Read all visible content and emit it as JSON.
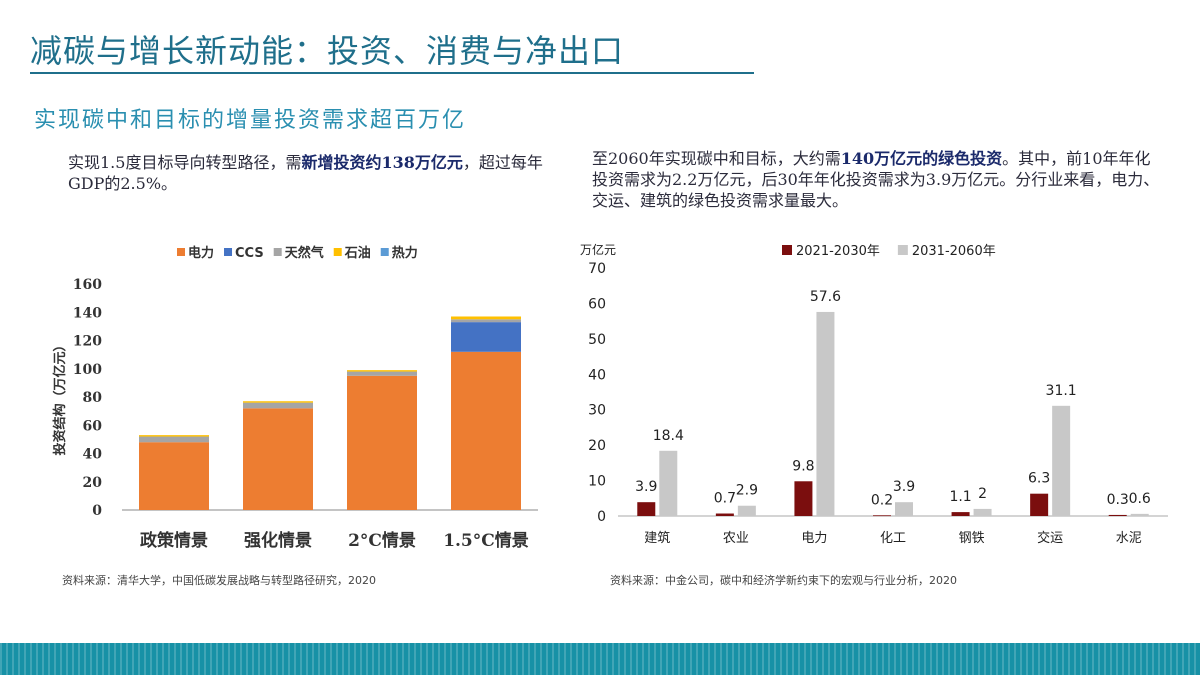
{
  "slide": {
    "title": "减碳与增长新动能：投资、消费与净出口",
    "subtitle": "实现碳中和目标的增量投资需求超百万亿"
  },
  "left_text": {
    "pre": "实现1.5度目标导向转型路径，需",
    "bold": "新增投资约138万亿元",
    "post": "，超过每年GDP的2.5%。"
  },
  "right_text": {
    "pre": "至2060年实现碳中和目标，大约需",
    "bold": "140万亿元的绿色投资",
    "post": "。其中，前10年年化投资需求为2.2万亿元，后30年年化投资需求为3.9万亿元。分行业来看，电力、交运、建筑的绿色投资需求量最大。"
  },
  "sources": {
    "left": "资料来源：清华大学，中国低碳发展战略与转型路径研究，2020",
    "right": "资料来源：中金公司，碳中和经济学新约束下的宏观与行业分析，2020"
  },
  "chart_data": [
    {
      "type": "bar",
      "stacked": true,
      "categories": [
        "政策情景",
        "强化情景",
        "2°C情景",
        "1.5°C情景"
      ],
      "series": [
        {
          "name": "电力",
          "color": "#ed7d31",
          "values": [
            48,
            72,
            95,
            112
          ]
        },
        {
          "name": "CCS",
          "color": "#4472c4",
          "values": [
            0,
            0,
            0,
            21
          ]
        },
        {
          "name": "天然气",
          "color": "#a5a5a5",
          "values": [
            4,
            4,
            3,
            2
          ]
        },
        {
          "name": "石油",
          "color": "#ffc000",
          "values": [
            1,
            1,
            1,
            2
          ]
        },
        {
          "name": "热力",
          "color": "#5b9bd5",
          "values": [
            0,
            0,
            0,
            0
          ]
        }
      ],
      "ylabel": "投资结构（万亿元）",
      "ylim": [
        0,
        160
      ],
      "yticks": [
        0,
        20,
        40,
        60,
        80,
        100,
        120,
        140,
        160
      ],
      "legend_position": "top",
      "grid": false
    },
    {
      "type": "bar",
      "categories": [
        "建筑",
        "农业",
        "电力",
        "化工",
        "钢铁",
        "交运",
        "水泥"
      ],
      "series": [
        {
          "name": "2021-2030年",
          "color": "#7b0e0e",
          "values": [
            3.9,
            0.7,
            9.8,
            0.2,
            1.1,
            6.3,
            0.3
          ]
        },
        {
          "name": "2031-2060年",
          "color": "#c8c8c8",
          "values": [
            18.4,
            2.9,
            57.6,
            3.9,
            2.0,
            31.1,
            0.6
          ]
        }
      ],
      "y_unit": "万亿元",
      "ylim": [
        0,
        70
      ],
      "yticks": [
        0,
        10,
        20,
        30,
        40,
        50,
        60,
        70
      ],
      "data_labels": true,
      "legend_position": "top",
      "grid": false
    }
  ]
}
